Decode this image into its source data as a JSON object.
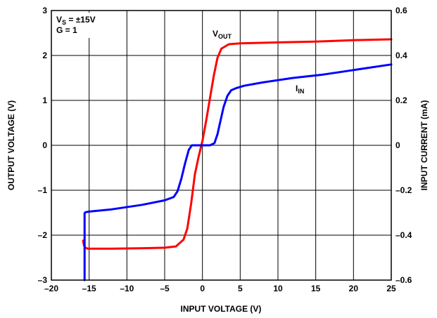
{
  "chart_data": {
    "type": "line",
    "xlabel": "INPUT VOLTAGE (V)",
    "ylabel": "OUTPUT VOLTAGE (V)",
    "y2label": "INPUT CURRENT (mA)",
    "xlim": [
      -20,
      25
    ],
    "ylim": [
      -3,
      3
    ],
    "y2lim": [
      -0.6,
      0.6
    ],
    "x_ticks": [
      -20,
      -15,
      -10,
      -5,
      0,
      5,
      10,
      15,
      20,
      25
    ],
    "x_tick_labels": [
      "–20",
      "–15",
      "–10",
      "–5",
      "0",
      "5",
      "10",
      "15",
      "20",
      "25"
    ],
    "y_ticks": [
      -3,
      -2,
      -1,
      0,
      1,
      2,
      3
    ],
    "y_tick_labels": [
      "–3",
      "–2",
      "–1",
      "0",
      "1",
      "2",
      "3"
    ],
    "y2_ticks": [
      -0.6,
      -0.4,
      -0.2,
      0,
      0.2,
      0.4,
      0.6
    ],
    "y2_tick_labels": [
      "–0.6",
      "–0.4",
      "–0.2",
      "0",
      "0.2",
      "0.4",
      "0.6"
    ],
    "grid": true,
    "conditions": {
      "line1_main": "V",
      "line1_sub": "S",
      "line1_rest": " = ±15V",
      "line2": "G = 1"
    },
    "series": [
      {
        "name_main": "V",
        "name_sub": "OUT",
        "color": "#ff0000",
        "axis": "left",
        "x": [
          -15.8,
          -15.7,
          -15.5,
          -15.2,
          -14.5,
          -12,
          -8,
          -5,
          -3.5,
          -2.5,
          -2,
          -1.5,
          -1,
          -0.5,
          0,
          0.5,
          1,
          1.5,
          2,
          2.5,
          3.5,
          5,
          10,
          15,
          20,
          25
        ],
        "y": [
          -2.12,
          -2.22,
          -2.28,
          -2.3,
          -2.3,
          -2.3,
          -2.29,
          -2.28,
          -2.25,
          -2.1,
          -1.85,
          -1.3,
          -0.65,
          -0.25,
          0.1,
          0.55,
          1.05,
          1.55,
          1.95,
          2.15,
          2.25,
          2.27,
          2.29,
          2.31,
          2.34,
          2.36
        ]
      },
      {
        "name_main": "I",
        "name_sub": "IN",
        "color": "#0000ff",
        "axis": "right",
        "x": [
          -15.6,
          -15.6,
          -15.5,
          -15,
          -12,
          -8,
          -5,
          -3.8,
          -3.3,
          -2.8,
          -2.3,
          -1.8,
          -1.4,
          -1,
          0,
          1,
          1.6,
          2,
          2.4,
          2.8,
          3.3,
          3.8,
          4.5,
          5.5,
          8,
          12,
          16,
          20,
          25
        ],
        "y": [
          -0.6,
          -0.302,
          -0.298,
          -0.295,
          -0.285,
          -0.265,
          -0.245,
          -0.23,
          -0.205,
          -0.15,
          -0.08,
          -0.02,
          0.0,
          0.0,
          0.0,
          0.0,
          0.01,
          0.05,
          0.11,
          0.17,
          0.22,
          0.245,
          0.255,
          0.265,
          0.28,
          0.3,
          0.315,
          0.335,
          0.36
        ]
      }
    ]
  },
  "colors": {
    "vout": "#ff0000",
    "iin": "#0000ff",
    "grid": "#000000"
  }
}
